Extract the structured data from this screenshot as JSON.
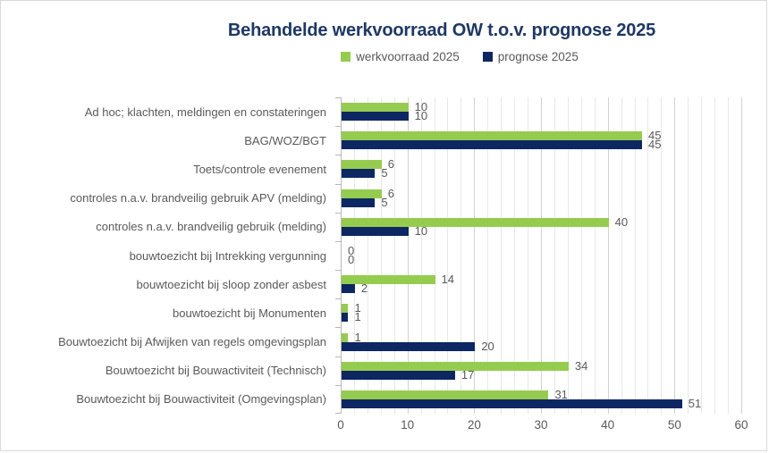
{
  "title": "Behandelde werkvoorraad OW t.o.v. prognose 2025",
  "colors": {
    "title": "#1f3864",
    "text": "#595959",
    "axis": "#b7b7b7",
    "grid_minor": "#e8e8e8",
    "grid_major": "#d2d2d2",
    "background": "#ffffff",
    "border": "#d9d9d9"
  },
  "chart_data": {
    "type": "bar",
    "orientation": "horizontal",
    "title": "Behandelde werkvoorraad OW t.o.v. prognose 2025",
    "categories": [
      "Ad hoc; klachten, meldingen en constateringen",
      "BAG/WOZ/BGT",
      "Toets/controle evenement",
      "controles n.a.v. brandveilig gebruik APV (melding)",
      "controles n.a.v. brandveilig gebruik (melding)",
      "bouwtoezicht bij Intrekking vergunning",
      "bouwtoezicht bij sloop zonder asbest",
      "bouwtoezicht bij Monumenten",
      "Bouwtoezicht bij Afwijken van regels omgevingsplan",
      "Bouwtoezicht bij Bouwactiviteit (Technisch)",
      "Bouwtoezicht bij Bouwactiviteit (Omgevingsplan)"
    ],
    "series": [
      {
        "name": "werkvoorraad 2025",
        "color": "#95cc4f",
        "values": [
          10,
          45,
          6,
          6,
          40,
          0,
          14,
          1,
          1,
          34,
          31
        ]
      },
      {
        "name": "prognose 2025",
        "color": "#0c2761",
        "values": [
          10,
          45,
          5,
          5,
          10,
          0,
          2,
          1,
          20,
          17,
          51
        ]
      }
    ],
    "xlim": [
      0,
      60
    ],
    "x_ticks": [
      0,
      10,
      20,
      30,
      40,
      50,
      60
    ],
    "minor_grid_step": 2,
    "major_grid_step": 10,
    "grid": true,
    "legend_position": "top",
    "data_labels": true
  }
}
